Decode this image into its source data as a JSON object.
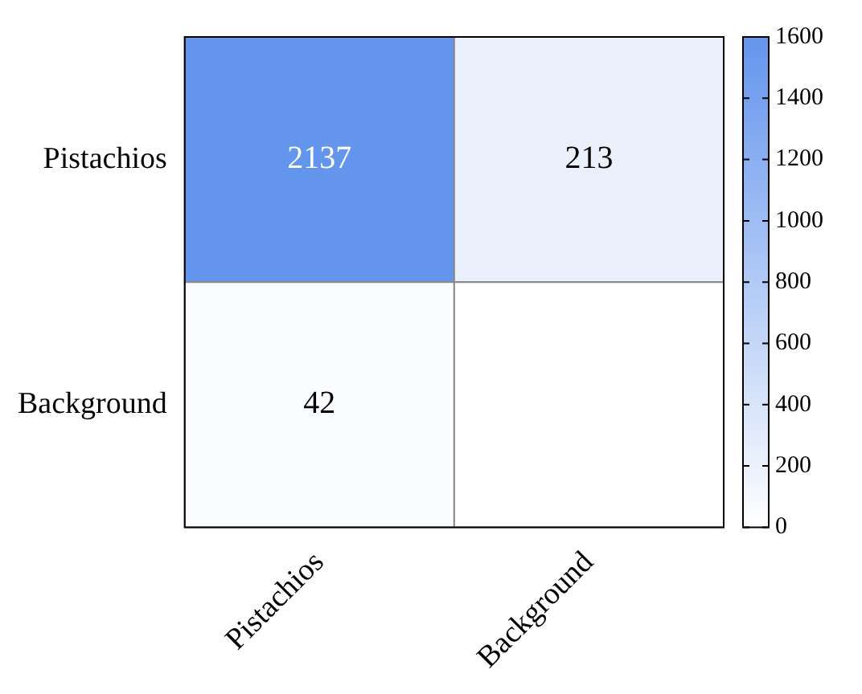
{
  "chart_data": {
    "type": "heatmap",
    "categories": [
      "Pistachios",
      "Background"
    ],
    "y_categories": [
      "Pistachios",
      "Background"
    ],
    "cells": [
      [
        2137,
        213
      ],
      [
        42,
        0
      ]
    ],
    "cell_labels": [
      [
        "2137",
        "213"
      ],
      [
        "42",
        null
      ]
    ],
    "color": "#6495ed",
    "clim": [
      0,
      1600
    ],
    "cticks": [
      0,
      200,
      400,
      600,
      800,
      1000,
      1200,
      1400,
      1600
    ]
  }
}
